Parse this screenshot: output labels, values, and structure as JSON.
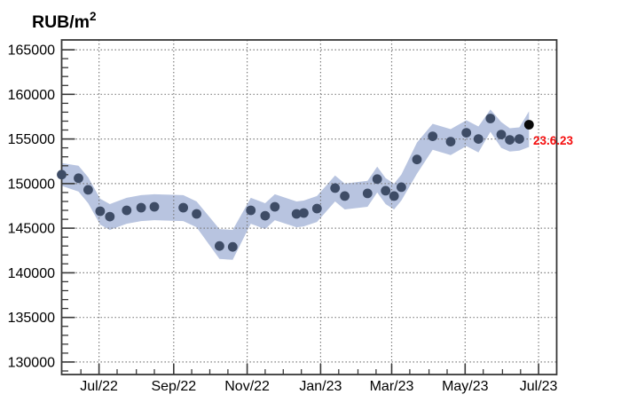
{
  "title": {
    "base": "RUB/m",
    "superscript": "2"
  },
  "annotation": {
    "text": "23.6.23",
    "color": "#f50f0f"
  },
  "colors": {
    "band": "#b8c4e0",
    "marker": "#3e4c66",
    "last_marker": "#0a0a0a",
    "grid": "#777777",
    "frame": "#383838",
    "tick": "#383838",
    "label": "#000000"
  },
  "chart_data": {
    "type": "scatter",
    "title": "RUB/m²",
    "ylabel": "RUB/m²",
    "xlabel": "",
    "grid": true,
    "legend_position": "none",
    "last_point_label": "23.6.23",
    "xlim": [
      "2022-05-31",
      "2023-07-16"
    ],
    "ylim": [
      128600,
      166100
    ],
    "yticks": [
      130000,
      135000,
      140000,
      145000,
      150000,
      155000,
      160000,
      165000
    ],
    "xticks": [
      {
        "date": "2022-07-01",
        "label": "Jul/22"
      },
      {
        "date": "2022-09-01",
        "label": "Sep/22"
      },
      {
        "date": "2022-11-01",
        "label": "Nov/22"
      },
      {
        "date": "2023-01-01",
        "label": "Jan/23"
      },
      {
        "date": "2023-03-01",
        "label": "Mar/23"
      },
      {
        "date": "2023-05-01",
        "label": "May/23"
      },
      {
        "date": "2023-07-01",
        "label": "Jul/23"
      }
    ],
    "x": [
      "2022-05-31",
      "2022-06-14",
      "2022-06-22",
      "2022-07-02",
      "2022-07-10",
      "2022-07-24",
      "2022-08-05",
      "2022-08-16",
      "2022-09-09",
      "2022-09-20",
      "2022-10-09",
      "2022-10-20",
      "2022-11-04",
      "2022-11-16",
      "2022-11-24",
      "2022-12-12",
      "2022-12-18",
      "2022-12-29",
      "2023-01-13",
      "2023-01-21",
      "2023-02-09",
      "2023-02-17",
      "2023-02-24",
      "2023-03-03",
      "2023-03-09",
      "2023-03-22",
      "2023-04-04",
      "2023-04-19",
      "2023-05-02",
      "2023-05-12",
      "2023-05-22",
      "2023-05-31",
      "2023-06-07",
      "2023-06-15",
      "2023-06-23"
    ],
    "values": [
      151000,
      150600,
      149300,
      146900,
      146300,
      147000,
      147300,
      147400,
      147300,
      146600,
      143000,
      142900,
      147000,
      146400,
      147400,
      146600,
      146700,
      147200,
      149500,
      148600,
      148900,
      150500,
      149200,
      148600,
      149600,
      152700,
      155300,
      154700,
      155700,
      155000,
      157300,
      155500,
      154900,
      155000,
      156600
    ],
    "band_upper": [
      152300,
      152000,
      150700,
      148300,
      147700,
      148400,
      148700,
      148800,
      148700,
      148000,
      144900,
      144800,
      148400,
      147800,
      148800,
      148000,
      148100,
      148600,
      150900,
      150000,
      150300,
      151900,
      150600,
      150000,
      151000,
      154600,
      156700,
      156100,
      157100,
      156400,
      158300,
      156900,
      156200,
      156300,
      158100
    ],
    "band_lower": [
      149750,
      149100,
      147800,
      145400,
      144800,
      145500,
      145800,
      145900,
      145800,
      145100,
      141550,
      141450,
      145500,
      144900,
      145900,
      145100,
      145200,
      145700,
      148000,
      147100,
      147400,
      149000,
      147700,
      147100,
      148100,
      151100,
      153800,
      153200,
      154200,
      153500,
      155800,
      154000,
      153600,
      153700,
      154100
    ]
  }
}
